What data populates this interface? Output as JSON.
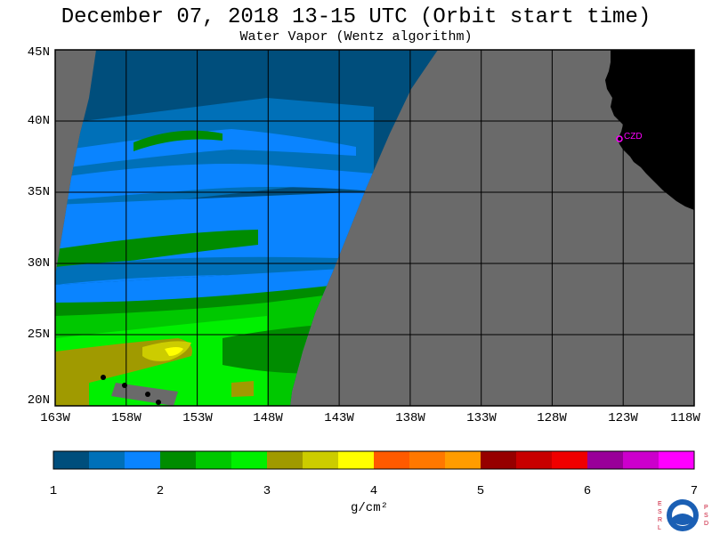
{
  "title": "December 07, 2018  13-15 UTC  (Orbit start time)",
  "subtitle": "Water Vapor (Wentz algorithm)",
  "lat_labels": [
    "45N",
    "40N",
    "35N",
    "30N",
    "25N",
    "20N"
  ],
  "lon_labels": [
    "163W",
    "158W",
    "153W",
    "148W",
    "143W",
    "138W",
    "133W",
    "128W",
    "123W",
    "118W"
  ],
  "station_label": "CZD",
  "colorbar": {
    "unit": "g/cm²",
    "tick_labels": [
      "1",
      "2",
      "3",
      "4",
      "5",
      "6",
      "7"
    ],
    "colors": [
      "#004e7c",
      "#0070b8",
      "#0a84ff",
      "#008c00",
      "#00c800",
      "#00f000",
      "#a09a00",
      "#cccc00",
      "#ffff00",
      "#ff5a00",
      "#ff7800",
      "#ff9c00",
      "#960000",
      "#c80000",
      "#f00000",
      "#990099",
      "#cc00cc",
      "#ff00ff"
    ]
  },
  "colors": {
    "no_data": "#6a6a6a",
    "land": "#000000",
    "station": "#ff00ff"
  },
  "logo_letters": {
    "left": "ESRL",
    "right": "PSD"
  }
}
